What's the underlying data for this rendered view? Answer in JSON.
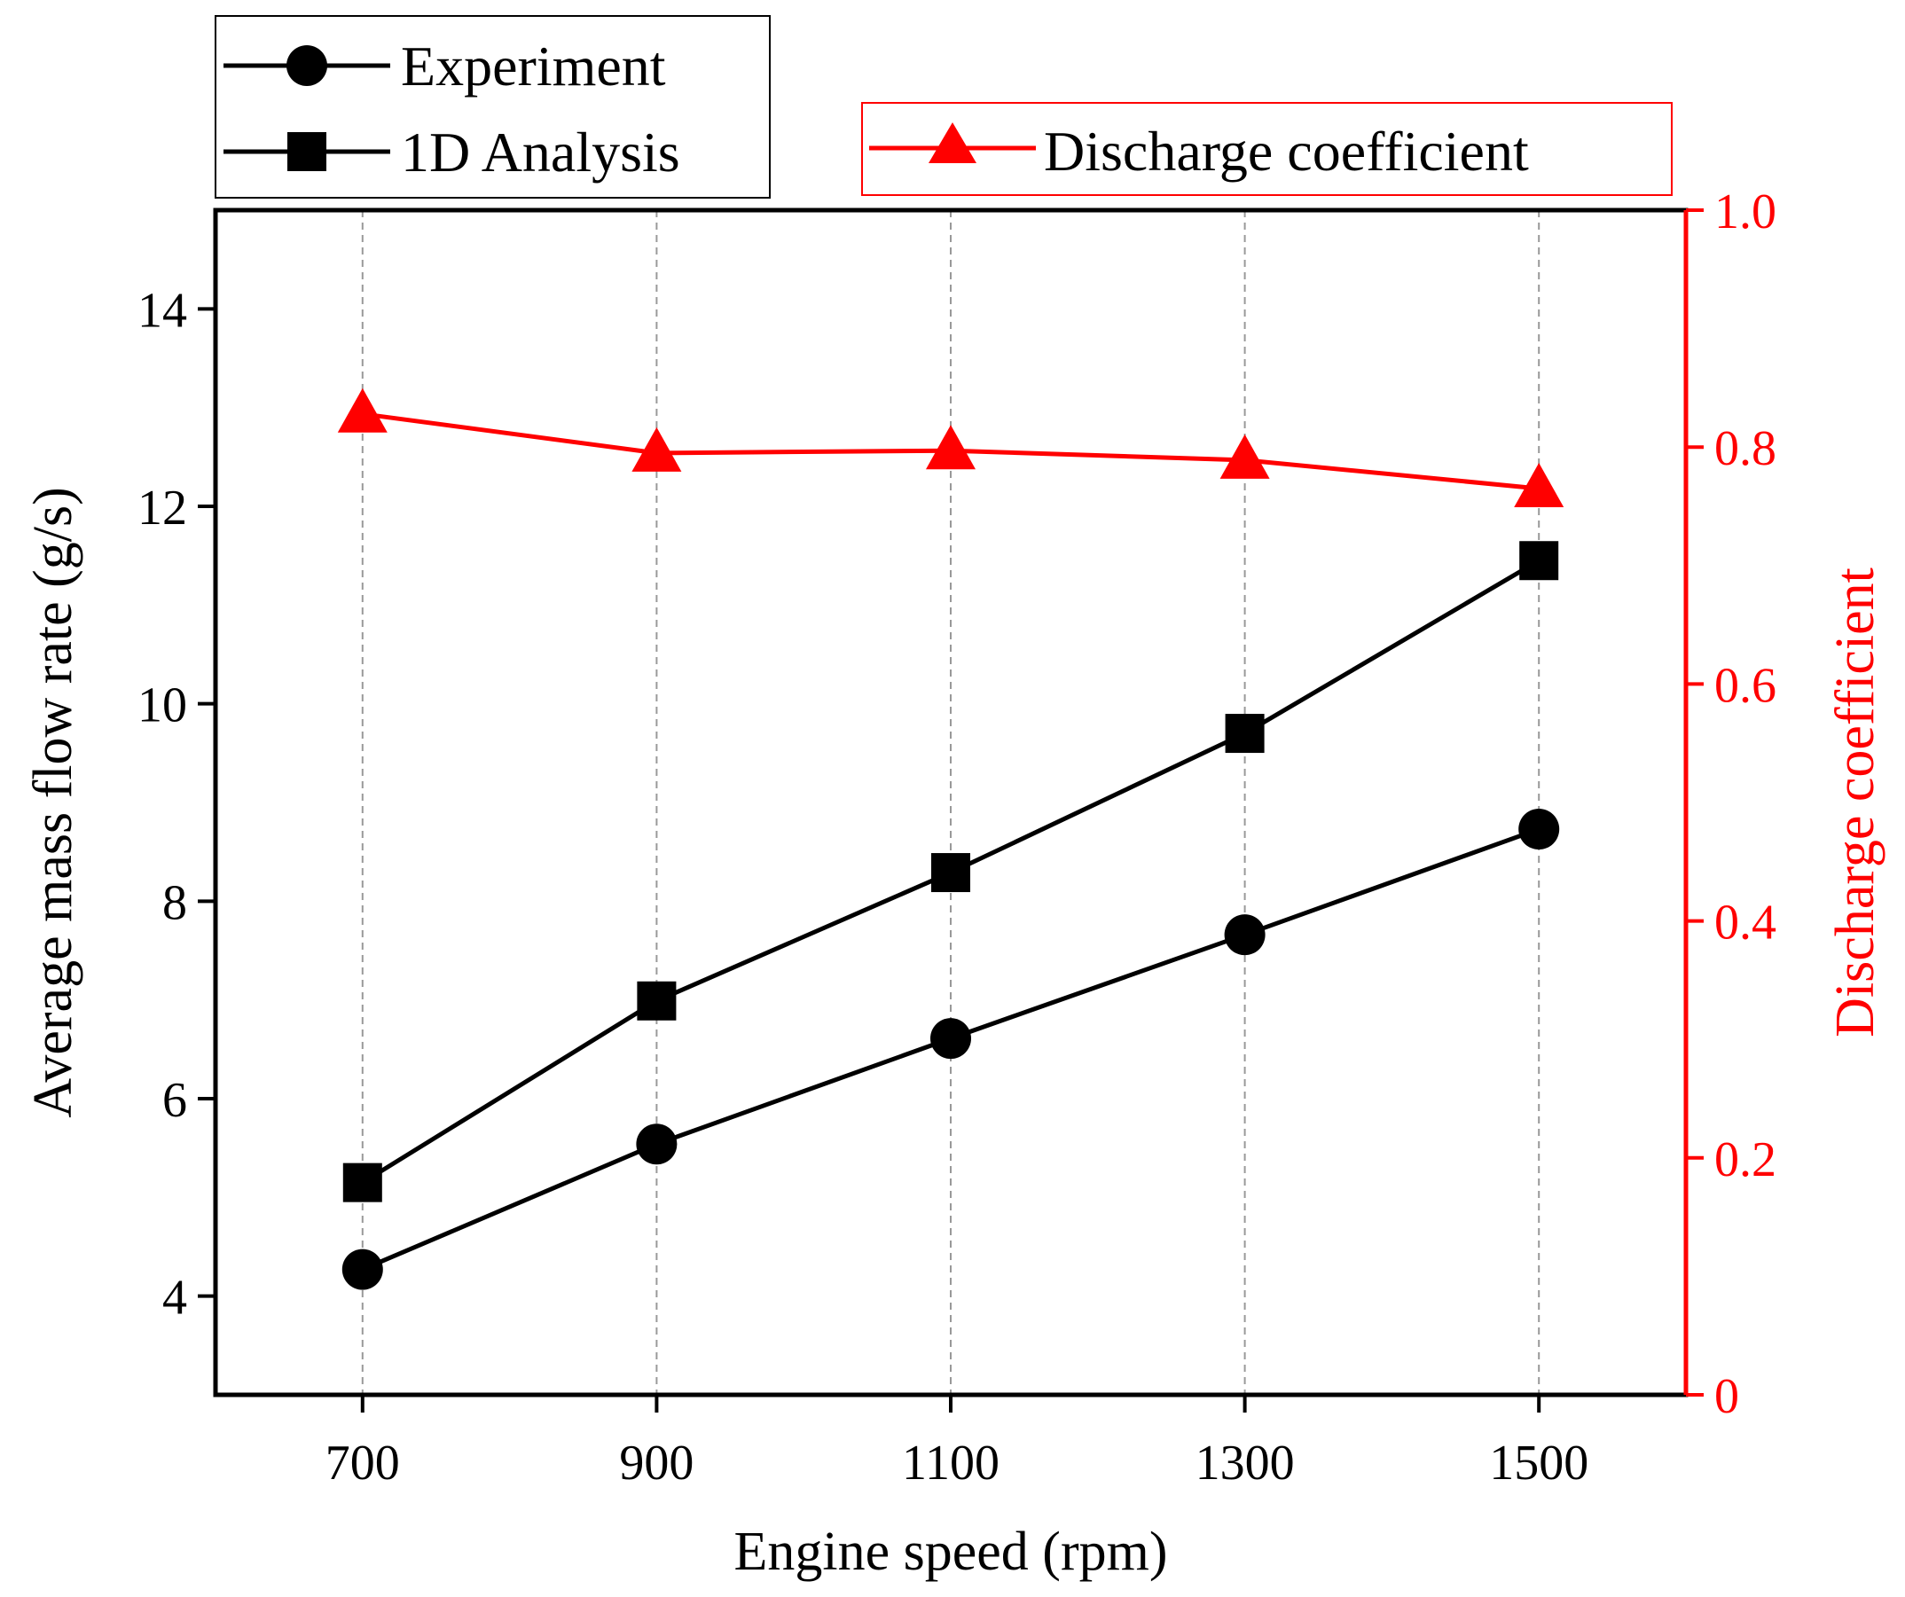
{
  "chart_data": {
    "type": "line",
    "x": [
      700,
      900,
      1100,
      1300,
      1500
    ],
    "xlabel": "Engine speed (rpm)",
    "ylabel": "Average mass flow rate (g/s)",
    "y2label": "Discharge coefficient",
    "xlim": [
      600,
      1600
    ],
    "ylim": [
      3,
      15
    ],
    "y2lim": [
      0,
      1.0
    ],
    "xticks": [
      "700",
      "900",
      "1100",
      "1300",
      "1500"
    ],
    "yticks": [
      "4",
      "6",
      "8",
      "10",
      "12",
      "14"
    ],
    "y2ticks": [
      "0",
      "0.2",
      "0.4",
      "0.6",
      "0.8",
      "1.0"
    ],
    "grid": "vertical dashed at x ticks",
    "series": [
      {
        "name": "Experiment",
        "axis": "left",
        "marker": "circle",
        "color": "#000000",
        "values": [
          4.27,
          5.54,
          6.61,
          7.66,
          8.73
        ]
      },
      {
        "name": "1D Analysis",
        "axis": "left",
        "marker": "square",
        "color": "#000000",
        "values": [
          5.15,
          6.99,
          8.29,
          9.7,
          11.45
        ]
      },
      {
        "name": "Discharge coefficient",
        "axis": "right",
        "marker": "triangle",
        "color": "#ff0000",
        "values": [
          0.828,
          0.795,
          0.797,
          0.789,
          0.765
        ]
      }
    ],
    "legend": [
      {
        "placement": "top-left",
        "color": "#000000",
        "entries": [
          "Experiment",
          "1D Analysis"
        ]
      },
      {
        "placement": "top-right",
        "color": "#ff0000",
        "entries": [
          "Discharge coefficient"
        ]
      }
    ]
  }
}
